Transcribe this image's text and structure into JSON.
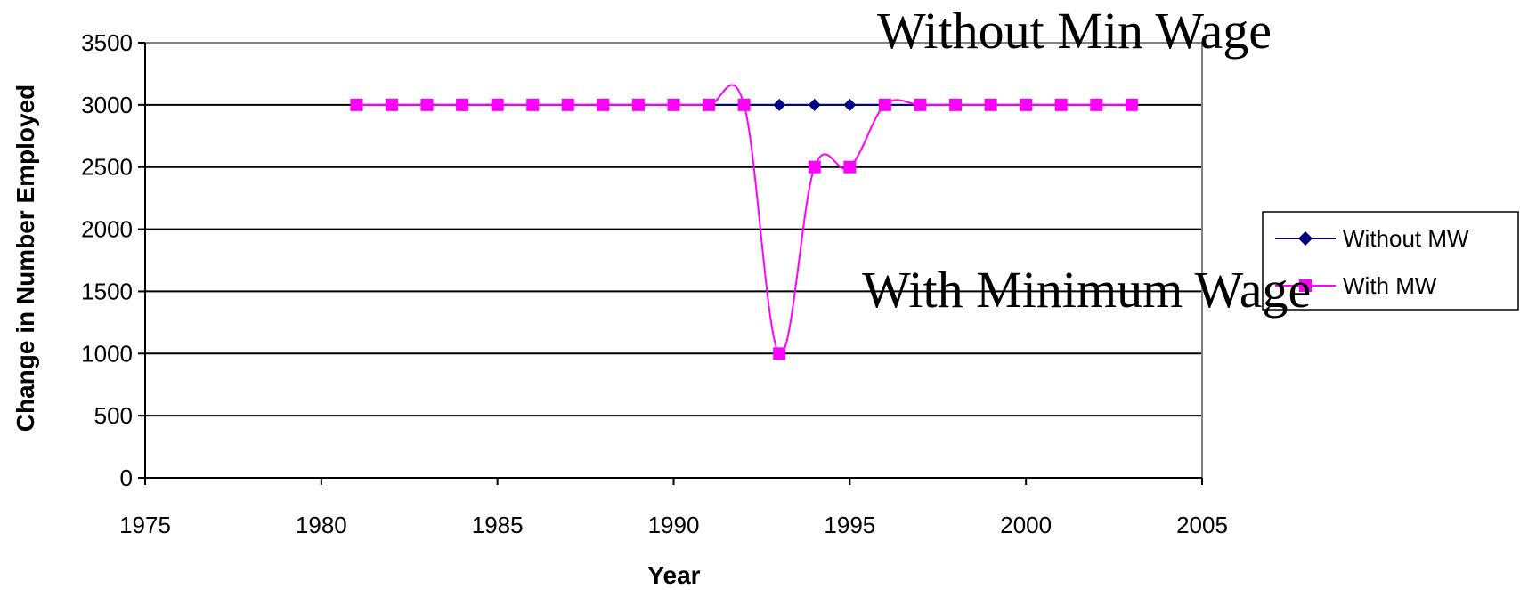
{
  "chart_data": {
    "type": "line",
    "title": "",
    "xlabel": "Year",
    "ylabel": "Change in Number Employed",
    "xlim": [
      1975,
      2005
    ],
    "ylim": [
      0,
      3500
    ],
    "x_ticks": [
      1975,
      1980,
      1985,
      1990,
      1995,
      2000,
      2005
    ],
    "y_ticks": [
      0,
      500,
      1000,
      1500,
      2000,
      2500,
      3000,
      3500
    ],
    "grid": "horizontal major gridlines",
    "legend_position": "right",
    "x": [
      1981,
      1982,
      1983,
      1984,
      1985,
      1986,
      1987,
      1988,
      1989,
      1990,
      1991,
      1992,
      1993,
      1994,
      1995,
      1996,
      1997,
      1998,
      1999,
      2000,
      2001,
      2002,
      2003
    ],
    "series": [
      {
        "name": "Without MW",
        "color": "#000080",
        "marker": "diamond",
        "values": [
          3000,
          3000,
          3000,
          3000,
          3000,
          3000,
          3000,
          3000,
          3000,
          3000,
          3000,
          3000,
          3000,
          3000,
          3000,
          3000,
          3000,
          3000,
          3000,
          3000,
          3000,
          3000,
          3000
        ]
      },
      {
        "name": "With MW",
        "color": "#FF00FF",
        "marker": "square",
        "values": [
          3000,
          3000,
          3000,
          3000,
          3000,
          3000,
          3000,
          3000,
          3000,
          3000,
          3000,
          3000,
          1000,
          2500,
          2500,
          3000,
          3000,
          3000,
          3000,
          3000,
          3000,
          3000,
          3000
        ]
      }
    ],
    "annotations": [
      "Without Min Wage",
      "With Minimum Wage"
    ]
  }
}
